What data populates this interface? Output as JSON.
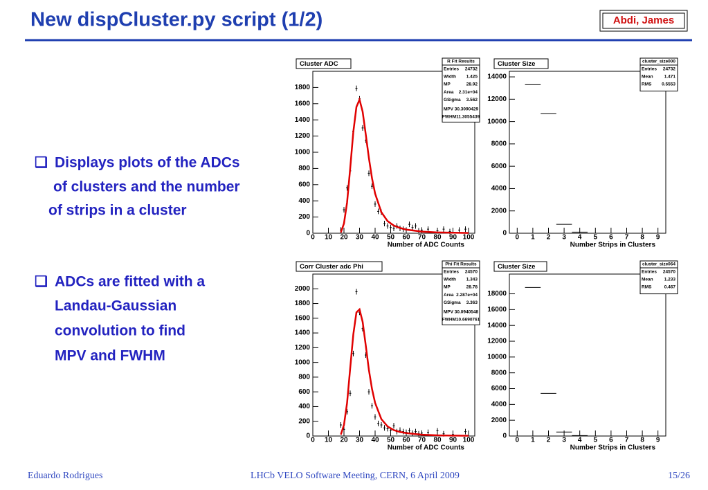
{
  "header": {
    "title": "New dispCluster.py script (1/2)",
    "author": "Abdi, James"
  },
  "bullets": [
    [
      "Displays plots of the ADCs",
      "of clusters and the number",
      "of strips in a cluster"
    ],
    [
      "ADCs are fitted with a",
      "Landau-Gaussian",
      "convolution to find",
      "MPV and FWHM"
    ]
  ],
  "footer": {
    "left": "Eduardo Rodrigues",
    "center": "LHCb VELO Software Meeting, CERN, 6 April 2009",
    "right": "15/26"
  },
  "chart_data": [
    {
      "type": "scatter",
      "title": "Cluster ADC",
      "x_label": "Number of ADC Counts",
      "xlim": [
        0,
        104
      ],
      "ylim": [
        0,
        2000
      ],
      "xticks": [
        0,
        10,
        20,
        30,
        40,
        50,
        60,
        70,
        80,
        90,
        100
      ],
      "yticks": [
        0,
        200,
        400,
        600,
        800,
        1000,
        1200,
        1400,
        1600,
        1800
      ],
      "series": [
        {
          "color": "#000000",
          "mode": "markers",
          "x": [
            18,
            20,
            22,
            24,
            26,
            28,
            30,
            32,
            34,
            36,
            38,
            40,
            42,
            44,
            46,
            48,
            50,
            52,
            54,
            56,
            58,
            60,
            62,
            64,
            66,
            68,
            70,
            74,
            80,
            84,
            88,
            94,
            98
          ],
          "values": [
            40,
            290,
            560,
            770,
            1260,
            1790,
            1660,
            1300,
            1150,
            740,
            580,
            360,
            270,
            260,
            120,
            90,
            70,
            60,
            90,
            60,
            50,
            40,
            110,
            70,
            90,
            30,
            40,
            50,
            30,
            50,
            20,
            40,
            50
          ]
        },
        {
          "color": "#e00000",
          "mode": "line",
          "x": [
            18,
            20,
            22,
            24,
            26,
            28,
            30,
            32,
            34,
            36,
            38,
            40,
            44,
            48,
            52,
            56,
            60,
            70,
            80,
            100
          ],
          "values": [
            10,
            120,
            380,
            800,
            1250,
            1560,
            1650,
            1500,
            1220,
            930,
            680,
            490,
            260,
            150,
            95,
            65,
            45,
            20,
            10,
            3
          ]
        }
      ],
      "stats": {
        "title": "R Fit Results",
        "rows": [
          [
            "Entries",
            "24732"
          ],
          [
            "Width",
            "1.425"
          ],
          [
            "MP",
            "28.92"
          ],
          [
            "Area",
            "2.31e+04"
          ],
          [
            "GSigma",
            "3.562"
          ]
        ],
        "lines": [
          "MPV 30.3090429",
          "FWHM11.3055439"
        ]
      }
    },
    {
      "type": "scatter",
      "title": "Cluster Size",
      "x_label": "Number Strips in Clusters",
      "xlim": [
        -0.5,
        9.5
      ],
      "ylim": [
        0,
        14500
      ],
      "xticks": [
        0,
        1,
        2,
        3,
        4,
        5,
        6,
        7,
        8,
        9
      ],
      "yticks": [
        0,
        2000,
        4000,
        6000,
        8000,
        10000,
        12000,
        14000
      ],
      "series": [
        {
          "color": "#000000",
          "mode": "bins",
          "x": [
            1,
            2,
            3,
            4
          ],
          "values": [
            13300,
            10700,
            800,
            100
          ]
        }
      ],
      "stats": {
        "title": "cluster_size000",
        "rows": [
          [
            "Entries",
            "24732"
          ],
          [
            "Mean",
            "1.471"
          ],
          [
            "RMS",
            "0.5553"
          ]
        ],
        "lines": []
      }
    },
    {
      "type": "scatter",
      "title": "Corr Cluster adc Phi",
      "x_label": "Number of ADC Counts",
      "xlim": [
        0,
        104
      ],
      "ylim": [
        0,
        2200
      ],
      "xticks": [
        0,
        10,
        20,
        30,
        40,
        50,
        60,
        70,
        80,
        90,
        100
      ],
      "yticks": [
        0,
        200,
        400,
        600,
        800,
        1000,
        1200,
        1400,
        1600,
        1800,
        2000
      ],
      "series": [
        {
          "color": "#000000",
          "mode": "markers",
          "x": [
            18,
            20,
            22,
            24,
            26,
            28,
            30,
            32,
            34,
            36,
            38,
            40,
            42,
            44,
            46,
            48,
            50,
            52,
            54,
            56,
            58,
            60,
            62,
            64,
            66,
            68,
            70,
            74,
            80,
            84,
            90,
            98
          ],
          "values": [
            150,
            90,
            330,
            580,
            1120,
            1960,
            1680,
            1460,
            1100,
            600,
            410,
            260,
            170,
            150,
            110,
            100,
            80,
            140,
            60,
            80,
            60,
            50,
            70,
            40,
            60,
            30,
            40,
            50,
            70,
            30,
            20,
            60
          ]
        },
        {
          "color": "#e00000",
          "mode": "line",
          "x": [
            18,
            20,
            22,
            24,
            26,
            28,
            30,
            32,
            34,
            36,
            38,
            40,
            44,
            48,
            52,
            56,
            60,
            70,
            80,
            100
          ],
          "values": [
            20,
            150,
            450,
            920,
            1380,
            1680,
            1720,
            1550,
            1230,
            900,
            640,
            450,
            230,
            130,
            80,
            55,
            40,
            18,
            9,
            3
          ]
        }
      ],
      "stats": {
        "title": "Phi Fit Results",
        "rows": [
          [
            "Entries",
            "24570"
          ],
          [
            "Width",
            "1.343"
          ],
          [
            "MP",
            "28.78"
          ],
          [
            "Area",
            "2.287e+04"
          ],
          [
            "GSigma",
            "3.363"
          ]
        ],
        "lines": [
          "MPV 30.0940548",
          "FWHM10.6690761"
        ]
      }
    },
    {
      "type": "scatter",
      "title": "Cluster Size",
      "x_label": "Number Strips in Clusters",
      "xlim": [
        -0.5,
        9.5
      ],
      "ylim": [
        0,
        20500
      ],
      "xticks": [
        0,
        1,
        2,
        3,
        4,
        5,
        6,
        7,
        8,
        9
      ],
      "yticks": [
        0,
        2000,
        4000,
        6000,
        8000,
        10000,
        12000,
        14000,
        16000,
        18000
      ],
      "series": [
        {
          "color": "#000000",
          "mode": "bins",
          "x": [
            1,
            2,
            3,
            4
          ],
          "values": [
            18800,
            5400,
            500,
            60
          ]
        }
      ],
      "stats": {
        "title": "cluster_size064",
        "rows": [
          [
            "Entries",
            "24570"
          ],
          [
            "Mean",
            "1.233"
          ],
          [
            "RMS",
            "0.467"
          ]
        ],
        "lines": []
      }
    }
  ]
}
